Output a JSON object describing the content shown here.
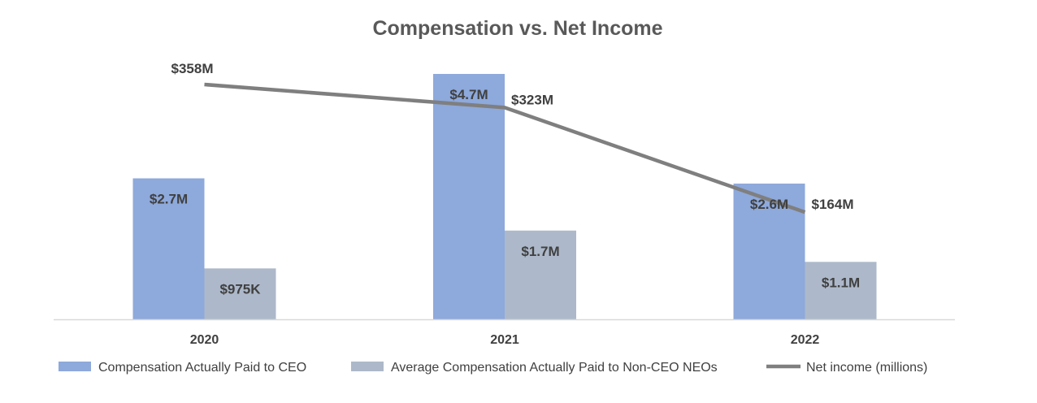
{
  "chart_data": {
    "type": "bar",
    "title": "Compensation vs. Net Income",
    "categories": [
      "2020",
      "2021",
      "2022"
    ],
    "series": [
      {
        "name": "Compensation Actually Paid to CEO",
        "kind": "bar",
        "color": "#8EA9DB",
        "values": [
          2.7,
          4.7,
          2.6
        ],
        "labels": [
          "$2.7M",
          "$4.7M",
          "$2.6M"
        ]
      },
      {
        "name": "Average Compensation Actually Paid to Non-CEO NEOs",
        "kind": "bar",
        "color": "#ADB9CA",
        "values": [
          0.975,
          1.7,
          1.1
        ],
        "labels": [
          "$975K",
          "$1.7M",
          "$1.1M"
        ]
      },
      {
        "name": "Net income (millions)",
        "kind": "line",
        "color": "#7F7F7F",
        "values": [
          358,
          323,
          164
        ],
        "labels": [
          "$358M",
          "$323M",
          "$164M"
        ]
      }
    ],
    "legend": "bottom",
    "grid": false
  }
}
